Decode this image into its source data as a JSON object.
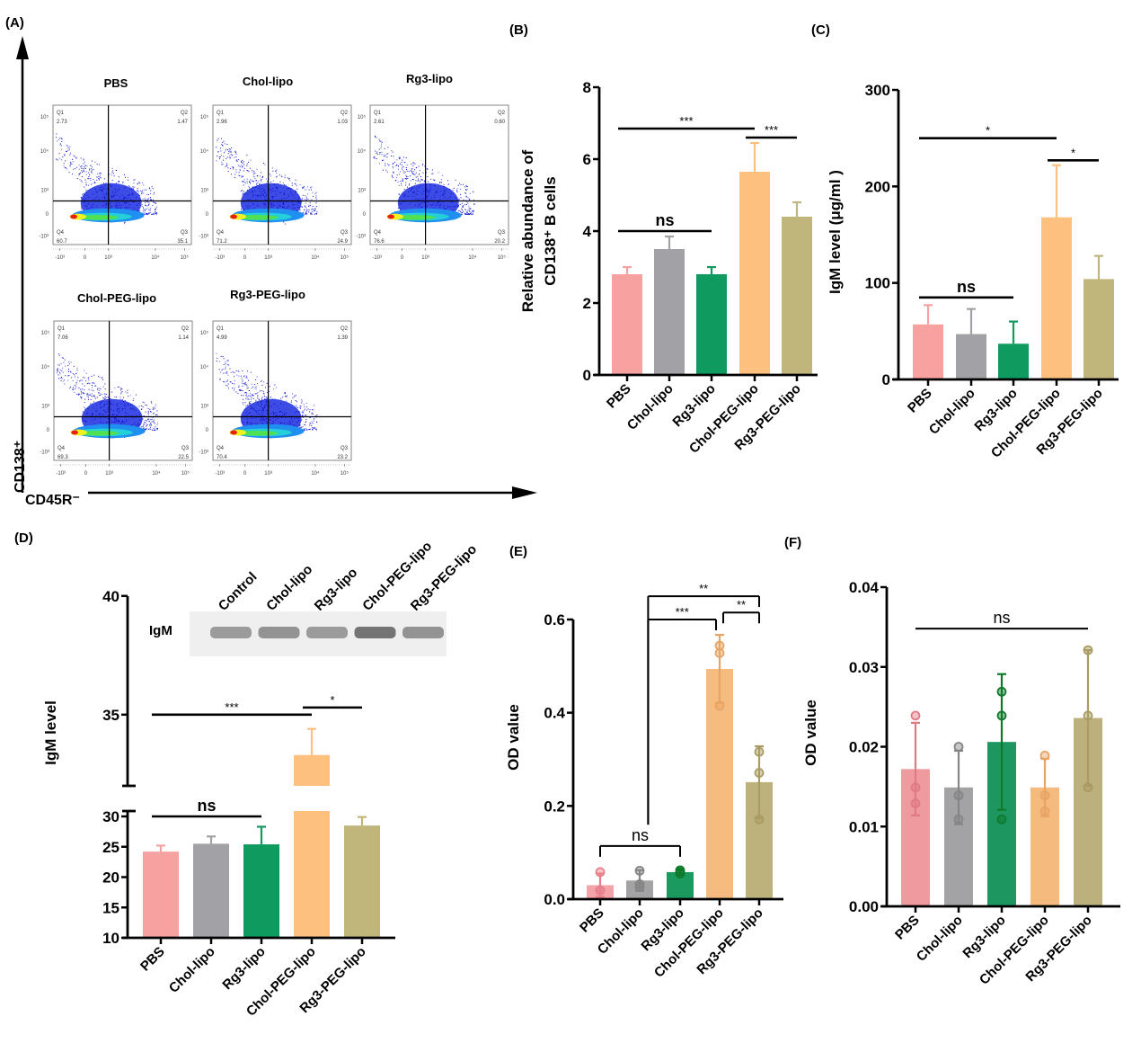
{
  "panel_labels": {
    "A": "(A)",
    "B": "(B)",
    "C": "(C)",
    "D": "(D)",
    "E": "(E)",
    "F": "(F)"
  },
  "flow": {
    "y_axis_label": "CD138⁺",
    "x_axis_label": "CD45R⁻",
    "x_ticks": [
      "-10³",
      "0",
      "10³",
      "10⁴",
      "10⁵"
    ],
    "y_ticks": [
      "10⁵",
      "10⁴",
      "10³",
      "0",
      "-10³"
    ],
    "quadrant_names": [
      "Q1",
      "Q2",
      "Q3",
      "Q4"
    ],
    "panels": [
      {
        "title": "PBS",
        "q1": "2.73",
        "q2": "1.47",
        "q3": "35.1",
        "q4": "60.7"
      },
      {
        "title": "Chol-lipo",
        "q1": "2.96",
        "q2": "1.03",
        "q3": "24.9",
        "q4": "71.2"
      },
      {
        "title": "Rg3-lipo",
        "q1": "2.61",
        "q2": "0.60",
        "q3": "20.2",
        "q4": "76.6"
      },
      {
        "title": "Chol-PEG-lipo",
        "q1": "7.06",
        "q2": "1.14",
        "q3": "22.5",
        "q4": "69.3"
      },
      {
        "title": "Rg3-PEG-lipo",
        "q1": "4.99",
        "q2": "1.39",
        "q3": "23.2",
        "q4": "70.4"
      }
    ]
  },
  "western_blot": {
    "row_label": "IgM",
    "lanes": [
      "Control",
      "Chol-lipo",
      "Rg3-lipo",
      "Chol-PEG-lipo",
      "Rg3-PEG-lipo"
    ]
  },
  "chart_data": [
    {
      "panel": "B",
      "type": "bar",
      "categories": [
        "PBS",
        "Chol-lipo",
        "Rg3-lipo",
        "Chol-PEG-lipo",
        "Rg3-PEG-lipo"
      ],
      "values": [
        2.8,
        3.5,
        2.8,
        5.65,
        4.4
      ],
      "errors": [
        0.2,
        0.35,
        0.2,
        0.8,
        0.4
      ],
      "ylabel": [
        "Relative abundance of",
        "CD138⁺ B cells"
      ],
      "ylim": [
        0,
        8
      ],
      "yticks": [
        "0",
        "2",
        "4",
        "6",
        "8"
      ],
      "colors": [
        "#f7a1a1",
        "#a2a2a6",
        "#0f9a60",
        "#fdc07e",
        "#c0b67c"
      ],
      "significance": [
        {
          "from": 0,
          "to": 3,
          "label": "***"
        },
        {
          "from": 3,
          "to": 4,
          "label": "***"
        },
        {
          "from": 0,
          "to": 2,
          "label": "ns"
        }
      ]
    },
    {
      "panel": "C",
      "type": "bar",
      "categories": [
        "PBS",
        "Chol-lipo",
        "Rg3-lipo",
        "Chol-PEG-lipo",
        "Rg3-PEG-lipo"
      ],
      "values": [
        57,
        47,
        37,
        168,
        104
      ],
      "errors": [
        20,
        26,
        23,
        54,
        24
      ],
      "ylabel": [
        "IgM level (μg/ml )"
      ],
      "ylim": [
        0,
        300
      ],
      "yticks": [
        "0",
        "100",
        "200",
        "300"
      ],
      "colors": [
        "#f7a1a1",
        "#a2a2a6",
        "#0f9a60",
        "#fdc07e",
        "#c0b67c"
      ],
      "significance": [
        {
          "from": 0,
          "to": 3,
          "label": "*"
        },
        {
          "from": 3,
          "to": 4,
          "label": "*"
        },
        {
          "from": 0,
          "to": 2,
          "label": "ns"
        }
      ]
    },
    {
      "panel": "D",
      "type": "bar",
      "categories": [
        "PBS",
        "Chol-lipo",
        "Rg3-lipo",
        "Chol-PEG-lipo",
        "Rg3-PEG-lipo"
      ],
      "values": [
        24.2,
        25.5,
        25.4,
        33.3,
        28.5
      ],
      "errors": [
        1.0,
        1.2,
        2.9,
        1.1,
        1.4
      ],
      "ylabel": [
        "IgM level"
      ],
      "ylim": [
        10,
        40
      ],
      "axis_break": [
        30,
        32
      ],
      "yticks": [
        "10",
        "15",
        "20",
        "25",
        "30",
        "35",
        "40"
      ],
      "colors": [
        "#f7a1a1",
        "#a2a2a6",
        "#0f9a60",
        "#fdc07e",
        "#c0b67c"
      ],
      "significance": [
        {
          "from": 0,
          "to": 3,
          "label": "***"
        },
        {
          "from": 3,
          "to": 4,
          "label": "*"
        },
        {
          "from": 0,
          "to": 2,
          "label": "ns"
        }
      ]
    },
    {
      "panel": "E",
      "type": "bar",
      "categories": [
        "PBS",
        "Chol-lipo",
        "Rg3-lipo",
        "Chol-PEG-lipo",
        "Rg3-PEG-lipo"
      ],
      "values": [
        0.03,
        0.04,
        0.058,
        0.494,
        0.251
      ],
      "errors": [
        0.025,
        0.022,
        0.005,
        0.073,
        0.077
      ],
      "points": [
        [
          0.058,
          0.019,
          0.019
        ],
        [
          0.061,
          0.032,
          0.026
        ],
        [
          0.055,
          0.062,
          0.058
        ],
        [
          0.544,
          0.528,
          0.415
        ],
        [
          0.316,
          0.271,
          0.171
        ]
      ],
      "ylabel": [
        "OD value"
      ],
      "ylim": [
        0,
        0.6
      ],
      "yticks": [
        "0.0",
        "0.2",
        "0.4",
        "0.6"
      ],
      "colors": [
        "#f4a3a8",
        "#a3a3a6",
        "#1a9a5e",
        "#f6bb7e",
        "#bdb27c"
      ],
      "point_colors": [
        "#e8808c",
        "#858585",
        "#0e7a2a",
        "#e8a464",
        "#a99b62"
      ],
      "significance": [
        {
          "from": 0,
          "to": 2,
          "label": "ns"
        },
        {
          "from": [
            0,
            2
          ],
          "to": 3,
          "label": "***"
        },
        {
          "from": 3,
          "to": 4,
          "label": "**"
        },
        {
          "from": [
            0,
            2
          ],
          "to": 4,
          "label": "**"
        }
      ]
    },
    {
      "panel": "F",
      "type": "bar",
      "categories": [
        "PBS",
        "Chol-lipo",
        "Rg3-lipo",
        "Chol-PEG-lipo",
        "Rg3-PEG-lipo"
      ],
      "values": [
        0.0172,
        0.0149,
        0.0206,
        0.0149,
        0.0236
      ],
      "errors": [
        0.0058,
        0.0046,
        0.0085,
        0.0036,
        0.0085
      ],
      "points": [
        [
          0.0239,
          0.0149,
          0.0129
        ],
        [
          0.02,
          0.0139,
          0.0109
        ],
        [
          0.0269,
          0.0239,
          0.0109
        ],
        [
          0.0189,
          0.0139,
          0.0119
        ],
        [
          0.0321,
          0.0239,
          0.0149
        ]
      ],
      "ylabel": [
        "OD value"
      ],
      "ylim": [
        0,
        0.04
      ],
      "yticks": [
        "0.00",
        "0.01",
        "0.02",
        "0.03",
        "0.04"
      ],
      "colors": [
        "#ef9a9e",
        "#a3a3a6",
        "#1d9660",
        "#f5ba7e",
        "#bcb07c"
      ],
      "point_colors": [
        "#e07a84",
        "#858585",
        "#0e7a2a",
        "#e8a464",
        "#a99b62"
      ],
      "significance": [
        {
          "from": 0,
          "to": 4,
          "label": "ns"
        }
      ]
    }
  ]
}
